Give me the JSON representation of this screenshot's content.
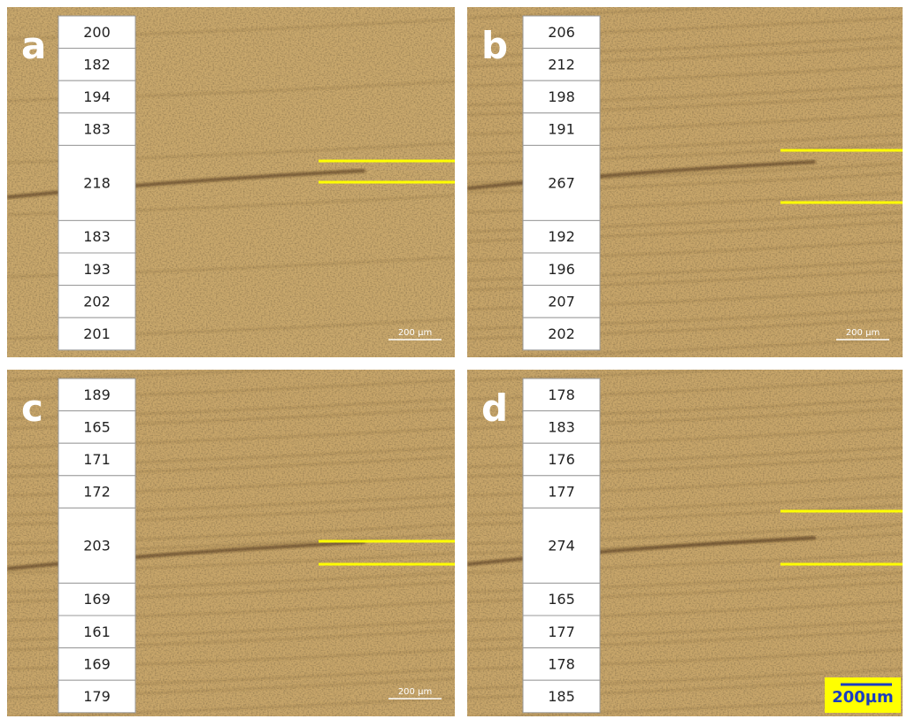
{
  "panels": [
    {
      "label": "a",
      "values": [
        "200",
        "182",
        "194",
        "183",
        "218",
        "183",
        "193",
        "202",
        "201"
      ],
      "scale_bar": "200 µm"
    },
    {
      "label": "b",
      "values": [
        "206",
        "212",
        "198",
        "191",
        "267",
        "192",
        "196",
        "207",
        "202"
      ],
      "scale_bar": "200 µm"
    },
    {
      "label": "c",
      "values": [
        "189",
        "165",
        "171",
        "172",
        "203",
        "169",
        "161",
        "169",
        "179"
      ],
      "scale_bar": "200 µm"
    },
    {
      "label": "d",
      "values": [
        "178",
        "183",
        "176",
        "177",
        "274",
        "165",
        "177",
        "178",
        "185"
      ],
      "scale_bar": "200µm"
    }
  ]
}
